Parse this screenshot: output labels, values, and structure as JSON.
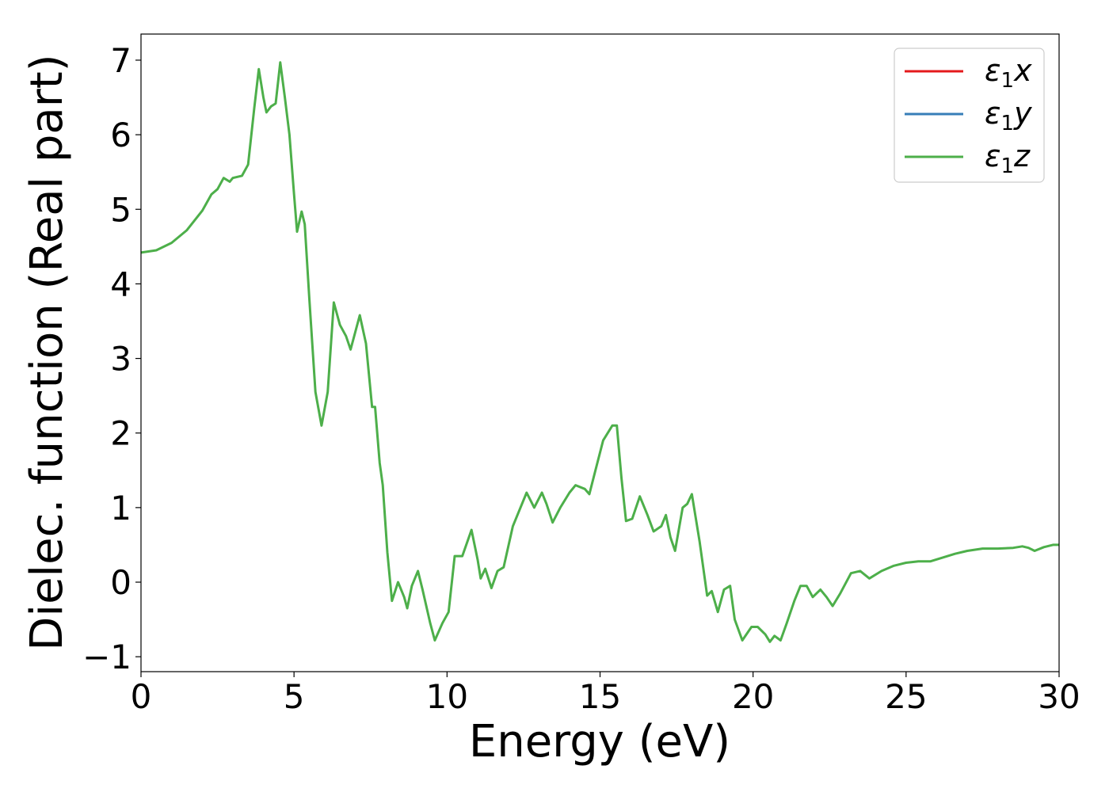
{
  "chart_data": {
    "type": "line",
    "title": "",
    "xlabel": "Energy (eV)",
    "ylabel": "Dielec. function (Real part)",
    "xlim": [
      0,
      30
    ],
    "ylim": [
      -1.2,
      7.35
    ],
    "xticks": [
      0,
      5,
      10,
      15,
      20,
      25,
      30
    ],
    "yticks": [
      -1,
      0,
      1,
      2,
      3,
      4,
      5,
      6,
      7
    ],
    "grid": false,
    "legend": {
      "position": "top-right",
      "entries": [
        {
          "base": "ε",
          "sub": "1",
          "var": "x",
          "color": "#e41a1c"
        },
        {
          "base": "ε",
          "sub": "1",
          "var": "y",
          "color": "#377eb8"
        },
        {
          "base": "ε",
          "sub": "1",
          "var": "z",
          "color": "#4daf4a"
        }
      ]
    },
    "series": [
      {
        "color": "#4daf4a",
        "points": [
          [
            0,
            4.42
          ],
          [
            0.5,
            4.45
          ],
          [
            1.0,
            4.55
          ],
          [
            1.5,
            4.72
          ],
          [
            2.0,
            4.98
          ],
          [
            2.3,
            5.2
          ],
          [
            2.5,
            5.27
          ],
          [
            2.7,
            5.42
          ],
          [
            2.9,
            5.37
          ],
          [
            3.0,
            5.42
          ],
          [
            3.3,
            5.45
          ],
          [
            3.5,
            5.6
          ],
          [
            3.7,
            6.35
          ],
          [
            3.85,
            6.88
          ],
          [
            4.0,
            6.5
          ],
          [
            4.1,
            6.3
          ],
          [
            4.25,
            6.38
          ],
          [
            4.4,
            6.42
          ],
          [
            4.55,
            6.97
          ],
          [
            4.7,
            6.5
          ],
          [
            4.85,
            6.0
          ],
          [
            5.0,
            5.2
          ],
          [
            5.1,
            4.7
          ],
          [
            5.25,
            4.97
          ],
          [
            5.35,
            4.8
          ],
          [
            5.5,
            3.8
          ],
          [
            5.7,
            2.55
          ],
          [
            5.9,
            2.1
          ],
          [
            6.1,
            2.55
          ],
          [
            6.3,
            3.75
          ],
          [
            6.5,
            3.45
          ],
          [
            6.7,
            3.3
          ],
          [
            6.85,
            3.12
          ],
          [
            7.0,
            3.35
          ],
          [
            7.15,
            3.58
          ],
          [
            7.35,
            3.2
          ],
          [
            7.55,
            2.35
          ],
          [
            7.65,
            2.35
          ],
          [
            7.8,
            1.6
          ],
          [
            7.9,
            1.3
          ],
          [
            8.05,
            0.4
          ],
          [
            8.2,
            -0.25
          ],
          [
            8.4,
            0.0
          ],
          [
            8.6,
            -0.2
          ],
          [
            8.7,
            -0.35
          ],
          [
            8.85,
            -0.05
          ],
          [
            9.05,
            0.15
          ],
          [
            9.2,
            -0.1
          ],
          [
            9.45,
            -0.55
          ],
          [
            9.6,
            -0.78
          ],
          [
            9.85,
            -0.55
          ],
          [
            10.05,
            -0.4
          ],
          [
            10.25,
            0.35
          ],
          [
            10.5,
            0.35
          ],
          [
            10.8,
            0.7
          ],
          [
            11.0,
            0.3
          ],
          [
            11.1,
            0.05
          ],
          [
            11.25,
            0.18
          ],
          [
            11.45,
            -0.08
          ],
          [
            11.65,
            0.15
          ],
          [
            11.85,
            0.2
          ],
          [
            12.15,
            0.75
          ],
          [
            12.6,
            1.2
          ],
          [
            12.85,
            1.0
          ],
          [
            13.1,
            1.2
          ],
          [
            13.25,
            1.05
          ],
          [
            13.45,
            0.8
          ],
          [
            13.7,
            1.0
          ],
          [
            14.0,
            1.2
          ],
          [
            14.2,
            1.3
          ],
          [
            14.5,
            1.25
          ],
          [
            14.65,
            1.18
          ],
          [
            14.85,
            1.5
          ],
          [
            15.1,
            1.9
          ],
          [
            15.4,
            2.1
          ],
          [
            15.55,
            2.1
          ],
          [
            15.7,
            1.4
          ],
          [
            15.85,
            0.82
          ],
          [
            16.05,
            0.85
          ],
          [
            16.3,
            1.15
          ],
          [
            16.55,
            0.9
          ],
          [
            16.75,
            0.68
          ],
          [
            17.0,
            0.75
          ],
          [
            17.15,
            0.9
          ],
          [
            17.3,
            0.6
          ],
          [
            17.45,
            0.42
          ],
          [
            17.7,
            1.0
          ],
          [
            17.85,
            1.05
          ],
          [
            18.0,
            1.18
          ],
          [
            18.25,
            0.55
          ],
          [
            18.5,
            -0.18
          ],
          [
            18.65,
            -0.12
          ],
          [
            18.85,
            -0.4
          ],
          [
            19.05,
            -0.1
          ],
          [
            19.25,
            -0.05
          ],
          [
            19.4,
            -0.5
          ],
          [
            19.65,
            -0.78
          ],
          [
            19.95,
            -0.6
          ],
          [
            20.15,
            -0.6
          ],
          [
            20.4,
            -0.7
          ],
          [
            20.55,
            -0.8
          ],
          [
            20.7,
            -0.72
          ],
          [
            20.9,
            -0.78
          ],
          [
            21.1,
            -0.55
          ],
          [
            21.35,
            -0.25
          ],
          [
            21.55,
            -0.05
          ],
          [
            21.75,
            -0.05
          ],
          [
            21.95,
            -0.2
          ],
          [
            22.2,
            -0.1
          ],
          [
            22.4,
            -0.2
          ],
          [
            22.6,
            -0.32
          ],
          [
            22.85,
            -0.15
          ],
          [
            23.2,
            0.12
          ],
          [
            23.5,
            0.15
          ],
          [
            23.8,
            0.05
          ],
          [
            24.2,
            0.15
          ],
          [
            24.6,
            0.22
          ],
          [
            25.0,
            0.26
          ],
          [
            25.4,
            0.28
          ],
          [
            25.8,
            0.28
          ],
          [
            26.2,
            0.33
          ],
          [
            26.6,
            0.38
          ],
          [
            27.0,
            0.42
          ],
          [
            27.5,
            0.45
          ],
          [
            28.0,
            0.45
          ],
          [
            28.5,
            0.46
          ],
          [
            28.8,
            0.48
          ],
          [
            29.0,
            0.46
          ],
          [
            29.2,
            0.42
          ],
          [
            29.5,
            0.47
          ],
          [
            29.8,
            0.5
          ],
          [
            30.0,
            0.5
          ]
        ]
      }
    ]
  }
}
